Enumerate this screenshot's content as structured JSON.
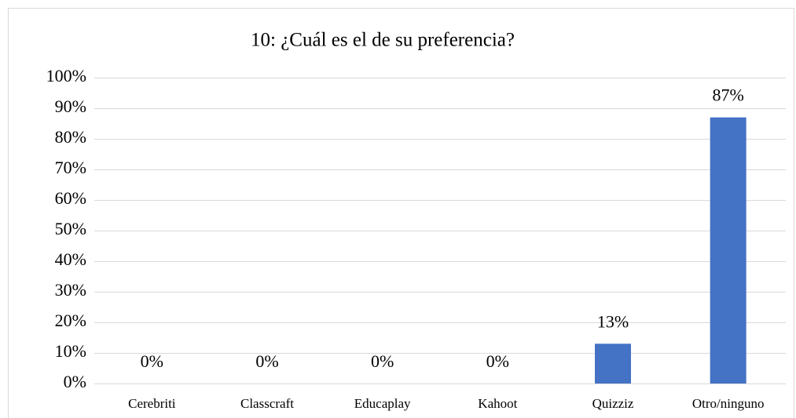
{
  "chart_data": {
    "type": "bar",
    "title": "10: ¿Cuál es el de su preferencia?",
    "categories": [
      "Cerebriti",
      "Classcraft",
      "Educaplay",
      "Kahoot",
      "Quizziz",
      "Otro/ninguno"
    ],
    "values": [
      0,
      0,
      0,
      0,
      13,
      87
    ],
    "value_labels": [
      "0%",
      "0%",
      "0%",
      "0%",
      "13%",
      "87%"
    ],
    "color": "#4472c4",
    "ylim": [
      0,
      100
    ],
    "yticks": [
      {
        "value": 0,
        "label": "0%"
      },
      {
        "value": 10,
        "label": "10%"
      },
      {
        "value": 20,
        "label": "20%"
      },
      {
        "value": 30,
        "label": "30%"
      },
      {
        "value": 40,
        "label": "40%"
      },
      {
        "value": 50,
        "label": "50%"
      },
      {
        "value": 60,
        "label": "60%"
      },
      {
        "value": 70,
        "label": "70%"
      },
      {
        "value": 80,
        "label": "80%"
      },
      {
        "value": 90,
        "label": "90%"
      },
      {
        "value": 100,
        "label": "100%"
      }
    ],
    "grid": true
  }
}
